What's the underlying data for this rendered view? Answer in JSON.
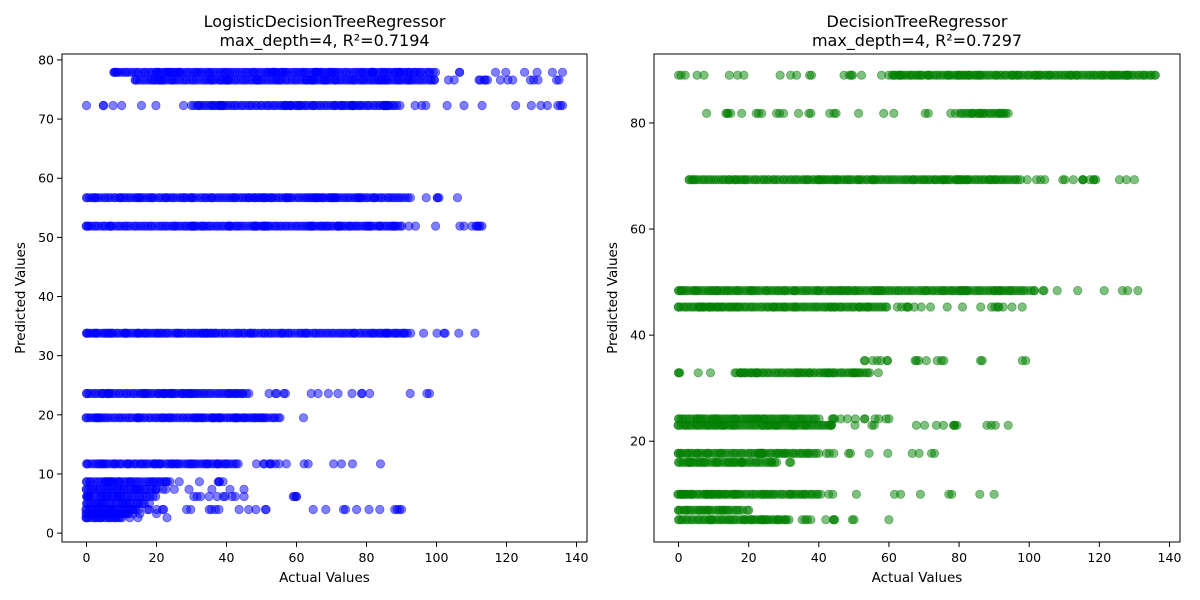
{
  "figure": {
    "background": "#ffffff"
  },
  "chart_data": [
    {
      "type": "scatter",
      "title": "LogisticDecisionTreeRegressor",
      "subtitle": "max_depth=4, R²=0.7194",
      "xlabel": "Actual Values",
      "ylabel": "Predicted Values",
      "xlim": [
        -7,
        143
      ],
      "ylim": [
        -1.5,
        81
      ],
      "xticks": [
        0,
        20,
        40,
        60,
        80,
        100,
        120,
        140
      ],
      "yticks": [
        0,
        10,
        20,
        30,
        40,
        50,
        60,
        70,
        80
      ],
      "grid": false,
      "legend": "none",
      "color": "#0000ff",
      "alpha": 0.5,
      "bands": [
        {
          "y": 77.9,
          "x_from": 8,
          "x_to": 136,
          "dense_from": 8,
          "dense_to": 100
        },
        {
          "y": 76.6,
          "x_from": 14,
          "x_to": 135,
          "dense_from": 14,
          "dense_to": 100
        },
        {
          "y": 72.3,
          "x_from": 0,
          "x_to": 136,
          "dense_from": 30,
          "dense_to": 90
        },
        {
          "y": 56.7,
          "x_from": 0,
          "x_to": 106,
          "dense_from": 0,
          "dense_to": 92
        },
        {
          "y": 51.9,
          "x_from": 0,
          "x_to": 113,
          "dense_from": 0,
          "dense_to": 90
        },
        {
          "y": 33.8,
          "x_from": 0,
          "x_to": 111,
          "dense_from": 0,
          "dense_to": 92
        },
        {
          "y": 23.6,
          "x_from": 0,
          "x_to": 98,
          "dense_from": 0,
          "dense_to": 46
        },
        {
          "y": 19.5,
          "x_from": 0,
          "x_to": 62,
          "dense_from": 0,
          "dense_to": 56
        },
        {
          "y": 11.7,
          "x_from": 0,
          "x_to": 84,
          "dense_from": 0,
          "dense_to": 44
        },
        {
          "y": 8.7,
          "x_from": 0,
          "x_to": 39,
          "dense_from": 0,
          "dense_to": 24
        },
        {
          "y": 7.4,
          "x_from": 0,
          "x_to": 45,
          "dense_from": 0,
          "dense_to": 20
        },
        {
          "y": 6.2,
          "x_from": 0,
          "x_to": 60,
          "dense_from": 0,
          "dense_to": 20
        },
        {
          "y": 5.0,
          "x_from": 0,
          "x_to": 18,
          "dense_from": 0,
          "dense_to": 16
        },
        {
          "y": 4.0,
          "x_from": 0,
          "x_to": 90,
          "dense_from": 0,
          "dense_to": 14
        },
        {
          "y": 3.3,
          "x_from": 0,
          "x_to": 20,
          "dense_from": 0,
          "dense_to": 12
        },
        {
          "y": 2.6,
          "x_from": 0,
          "x_to": 23,
          "dense_from": 0,
          "dense_to": 10
        }
      ]
    },
    {
      "type": "scatter",
      "title": "DecisionTreeRegressor",
      "subtitle": "max_depth=4, R²=0.7297",
      "xlabel": "Actual Values",
      "ylabel": "Predicted Values",
      "xlim": [
        -7,
        143
      ],
      "ylim": [
        1,
        93
      ],
      "xticks": [
        0,
        20,
        40,
        60,
        80,
        100,
        120,
        140
      ],
      "yticks": [
        20,
        40,
        60,
        80
      ],
      "grid": false,
      "legend": "none",
      "color": "#008000",
      "alpha": 0.5,
      "bands": [
        {
          "y": 89.0,
          "x_from": 0,
          "x_to": 136,
          "dense_from": 60,
          "dense_to": 136
        },
        {
          "y": 81.8,
          "x_from": 8,
          "x_to": 94,
          "dense_from": 80,
          "dense_to": 94
        },
        {
          "y": 69.3,
          "x_from": 3,
          "x_to": 130,
          "dense_from": 3,
          "dense_to": 98
        },
        {
          "y": 48.4,
          "x_from": 0,
          "x_to": 131,
          "dense_from": 0,
          "dense_to": 100
        },
        {
          "y": 45.3,
          "x_from": 0,
          "x_to": 98,
          "dense_from": 0,
          "dense_to": 60
        },
        {
          "y": 35.2,
          "x_from": 53,
          "x_to": 99,
          "dense_from": 53,
          "dense_to": 53
        },
        {
          "y": 32.9,
          "x_from": 0,
          "x_to": 57,
          "dense_from": 16,
          "dense_to": 55
        },
        {
          "y": 24.2,
          "x_from": 0,
          "x_to": 60,
          "dense_from": 0,
          "dense_to": 40
        },
        {
          "y": 23.0,
          "x_from": 0,
          "x_to": 94,
          "dense_from": 0,
          "dense_to": 44
        },
        {
          "y": 17.7,
          "x_from": 0,
          "x_to": 73,
          "dense_from": 0,
          "dense_to": 40
        },
        {
          "y": 16.0,
          "x_from": 0,
          "x_to": 32,
          "dense_from": 0,
          "dense_to": 28
        },
        {
          "y": 10.0,
          "x_from": 0,
          "x_to": 90,
          "dense_from": 0,
          "dense_to": 40
        },
        {
          "y": 7.0,
          "x_from": 0,
          "x_to": 20,
          "dense_from": 0,
          "dense_to": 18
        },
        {
          "y": 5.2,
          "x_from": 0,
          "x_to": 60,
          "dense_from": 0,
          "dense_to": 32
        }
      ]
    }
  ]
}
